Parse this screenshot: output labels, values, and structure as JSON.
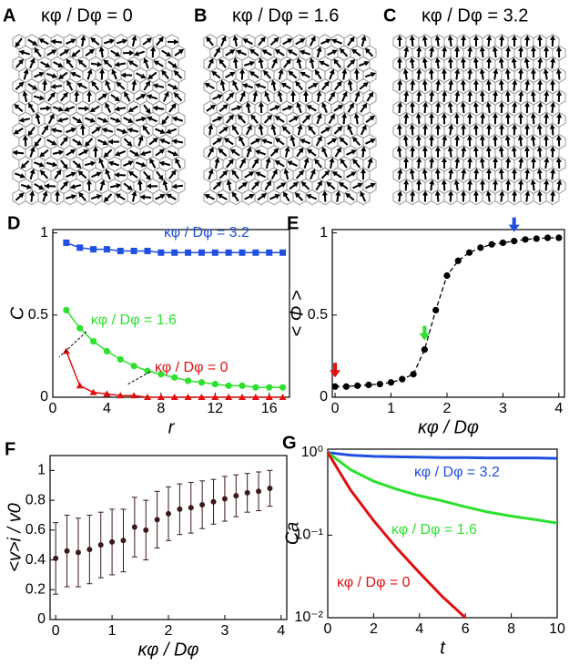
{
  "image_panels": [
    {
      "panel": "A",
      "title": "κφ / Dφ = 0"
    },
    {
      "panel": "B",
      "title": "κφ / Dφ = 1.6"
    },
    {
      "panel": "C",
      "title": "κφ / Dφ = 3.2"
    }
  ],
  "chart_data": [
    {
      "type": "line",
      "panel": "D",
      "xlabel": "r",
      "ylabel": "C",
      "x": [
        1,
        2,
        3,
        4,
        5,
        6,
        7,
        8,
        9,
        10,
        11,
        12,
        13,
        14,
        15,
        16,
        17
      ],
      "series": [
        {
          "name": "κφ / Dφ = 3.2",
          "color": "#1f4fe0",
          "marker": "square",
          "values": [
            0.94,
            0.91,
            0.9,
            0.9,
            0.89,
            0.89,
            0.89,
            0.88,
            0.88,
            0.88,
            0.88,
            0.88,
            0.88,
            0.88,
            0.88,
            0.88,
            0.88
          ]
        },
        {
          "name": "κφ / Dφ = 1.6",
          "color": "#2ee02e",
          "marker": "circle",
          "values": [
            0.53,
            0.42,
            0.34,
            0.28,
            0.23,
            0.19,
            0.16,
            0.14,
            0.12,
            0.1,
            0.09,
            0.08,
            0.07,
            0.07,
            0.06,
            0.06,
            0.06
          ]
        },
        {
          "name": "κφ / Dφ = 0",
          "color": "#e01010",
          "marker": "triangle",
          "values": [
            0.28,
            0.07,
            0.03,
            0.02,
            0.01,
            0.01,
            0,
            0,
            0,
            0,
            0,
            0,
            0,
            0,
            0,
            0,
            0
          ]
        }
      ],
      "xlim": [
        0,
        17.5
      ],
      "xticks": [
        0,
        4,
        8,
        12,
        16
      ],
      "ylim": [
        0,
        1.02
      ],
      "yticks": [
        0,
        0.5,
        1
      ]
    },
    {
      "type": "scatter",
      "panel": "E",
      "xlabel": "κφ / Dφ",
      "ylabel": "< Φ >",
      "x": [
        0,
        0.2,
        0.4,
        0.6,
        0.8,
        1,
        1.2,
        1.4,
        1.6,
        1.8,
        2,
        2.2,
        2.4,
        2.6,
        2.8,
        3,
        3.2,
        3.4,
        3.6,
        3.8,
        4
      ],
      "values": [
        0.065,
        0.065,
        0.07,
        0.075,
        0.08,
        0.09,
        0.11,
        0.14,
        0.29,
        0.53,
        0.74,
        0.83,
        0.88,
        0.91,
        0.93,
        0.94,
        0.95,
        0.96,
        0.965,
        0.97,
        0.97
      ],
      "color": "#000000",
      "arrows": [
        {
          "x": 0,
          "color": "#e01010"
        },
        {
          "x": 1.6,
          "color": "#2ee02e"
        },
        {
          "x": 3.2,
          "color": "#1f4fe0"
        }
      ],
      "xlim": [
        -0.05,
        4.1
      ],
      "xticks": [
        0,
        1,
        2,
        3,
        4
      ],
      "ylim": [
        0,
        1.02
      ],
      "yticks": [
        0,
        0.5,
        1
      ]
    },
    {
      "type": "errorbar",
      "panel": "F",
      "xlabel": "κφ / Dφ",
      "ylabel": "<v>i / v0",
      "x": [
        0,
        0.2,
        0.4,
        0.6,
        0.8,
        1,
        1.2,
        1.4,
        1.6,
        1.8,
        2,
        2.2,
        2.4,
        2.6,
        2.8,
        3,
        3.2,
        3.4,
        3.6,
        3.8
      ],
      "values": [
        0.41,
        0.46,
        0.45,
        0.47,
        0.5,
        0.52,
        0.53,
        0.62,
        0.6,
        0.67,
        0.71,
        0.74,
        0.75,
        0.77,
        0.79,
        0.81,
        0.83,
        0.85,
        0.86,
        0.88
      ],
      "errors": [
        0.24,
        0.24,
        0.23,
        0.23,
        0.22,
        0.22,
        0.21,
        0.2,
        0.2,
        0.19,
        0.18,
        0.17,
        0.17,
        0.16,
        0.15,
        0.15,
        0.14,
        0.13,
        0.13,
        0.12
      ],
      "color": "#3a1a1a",
      "xlim": [
        -0.1,
        4.1
      ],
      "xticks": [
        0,
        1,
        2,
        3,
        4
      ],
      "ylim": [
        0,
        1.1
      ],
      "yticks": [
        0,
        0.2,
        0.4,
        0.6,
        0.8,
        1
      ]
    },
    {
      "type": "line",
      "panel": "G",
      "xlabel": "t",
      "ylabel": "Ca",
      "log_y": true,
      "x": [
        0,
        1,
        2,
        3,
        4,
        5,
        6,
        7,
        8,
        9,
        10
      ],
      "series": [
        {
          "name": "κφ / Dφ = 3.2",
          "color": "#1f4fe0",
          "values": [
            1,
            0.93,
            0.9,
            0.89,
            0.88,
            0.87,
            0.87,
            0.86,
            0.86,
            0.86,
            0.85
          ]
        },
        {
          "name": "κφ / Dφ = 1.6",
          "color": "#2ee02e",
          "values": [
            1,
            0.62,
            0.45,
            0.36,
            0.3,
            0.26,
            0.22,
            0.19,
            0.17,
            0.155,
            0.14
          ]
        },
        {
          "name": "κφ / Dφ = 0",
          "color": "#e01010",
          "values": [
            1,
            0.35,
            0.15,
            0.07,
            0.035,
            0.018,
            0.01,
            null,
            null,
            null,
            null
          ]
        }
      ],
      "xlim": [
        0,
        10
      ],
      "xticks": [
        0,
        2,
        4,
        6,
        8,
        10
      ],
      "ylim": [
        0.01,
        1.1
      ],
      "yticks": [
        {
          "value": 0.01,
          "label": "10⁻²"
        },
        {
          "value": 0.1,
          "label": "10⁻¹"
        },
        {
          "value": 1,
          "label": "10⁰"
        }
      ]
    }
  ]
}
